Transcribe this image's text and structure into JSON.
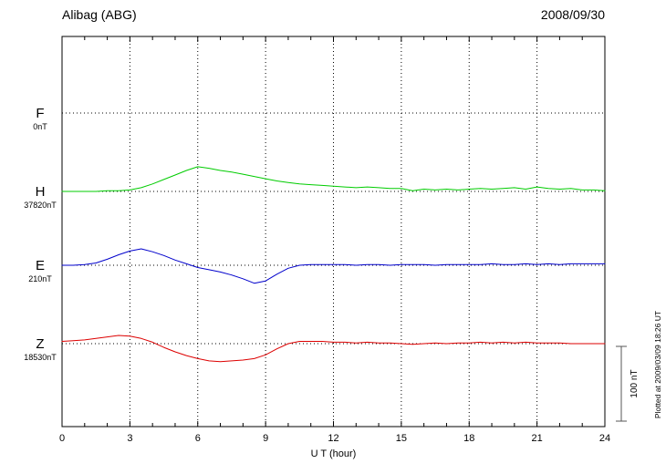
{
  "chart_data": {
    "type": "line",
    "title": "Alibag (ABG)",
    "date": "2008/09/30",
    "xlabel": "U T (hour)",
    "x_range": [
      0,
      24
    ],
    "x_ticks": [
      0,
      3,
      6,
      9,
      12,
      15,
      18,
      21,
      24
    ],
    "sample_step_hours": 0.5,
    "grid": "dotted-vertical-at-3h-and-dotted-baselines",
    "scale_bar": {
      "label": "100 nT",
      "nT": 100
    },
    "plotted_at": "Plotted at 2009/03/09 18:26 UT",
    "series": [
      {
        "name": "F",
        "baseline_label": "0nT",
        "color": "#ffa500",
        "values": []
      },
      {
        "name": "H",
        "baseline_label": "37820nT",
        "color": "#00cc00",
        "values": [
          0,
          0,
          0,
          0,
          1,
          1,
          2,
          5,
          10,
          16,
          22,
          28,
          33,
          31,
          28,
          26,
          23,
          20,
          17,
          14,
          12,
          10,
          9,
          8,
          7,
          6,
          5,
          6,
          5,
          4,
          4,
          1,
          3,
          2,
          3,
          2,
          3,
          4,
          3,
          4,
          5,
          3,
          6,
          4,
          3,
          4,
          2,
          2,
          1
        ]
      },
      {
        "name": "E",
        "baseline_label": "210nT",
        "color": "#0000cc",
        "values": [
          0,
          0,
          1,
          3,
          8,
          14,
          19,
          22,
          18,
          13,
          7,
          2,
          -3,
          -6,
          -9,
          -13,
          -18,
          -24,
          -21,
          -12,
          -4,
          0,
          1,
          1,
          1,
          1,
          0,
          1,
          1,
          0,
          1,
          1,
          1,
          0,
          1,
          1,
          1,
          1,
          2,
          1,
          1,
          2,
          1,
          2,
          1,
          2,
          2,
          2,
          2
        ]
      },
      {
        "name": "Z",
        "baseline_label": "18530nT",
        "color": "#dd0000",
        "values": [
          3,
          4,
          5,
          7,
          9,
          11,
          10,
          7,
          2,
          -5,
          -11,
          -16,
          -20,
          -23,
          -24,
          -23,
          -22,
          -20,
          -15,
          -7,
          0,
          3,
          3,
          3,
          2,
          2,
          1,
          2,
          1,
          1,
          0,
          -1,
          0,
          1,
          0,
          1,
          1,
          2,
          1,
          2,
          1,
          2,
          1,
          1,
          1,
          0,
          0,
          0,
          0
        ]
      }
    ]
  }
}
